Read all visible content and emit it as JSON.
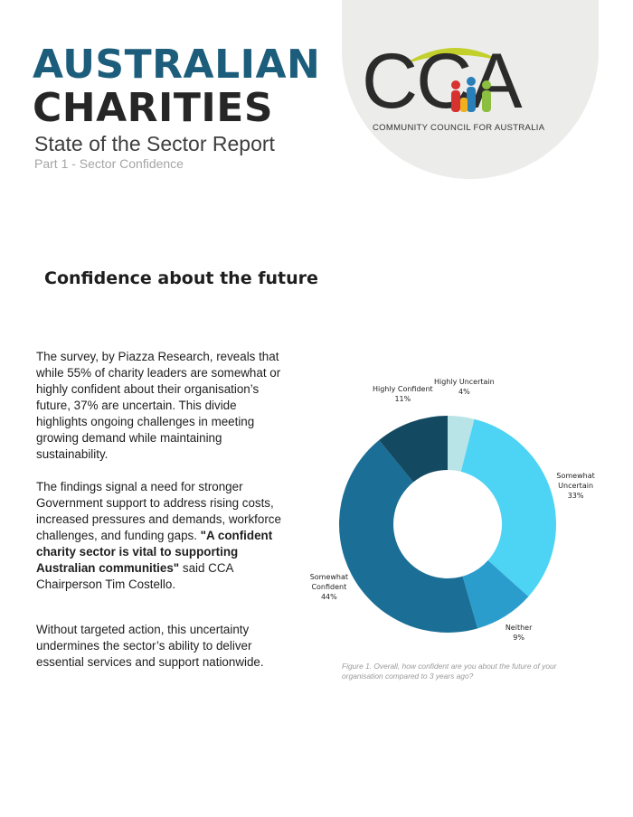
{
  "header": {
    "title_line1": "AUSTRALIAN",
    "title_line2": "CHARITIES",
    "subtitle": "State of the Sector Report",
    "part": "Part 1 - Sector Confidence"
  },
  "logo": {
    "letters": "CCA",
    "tagline": "COMMUNITY COUNCIL FOR AUSTRALIA"
  },
  "section_title": "Confidence about the future",
  "paragraphs": [
    [
      "The survey, by Piazza Research, reveals that while 55% of charity leaders are somewhat or highly confident about their organisation’s future, 37% are uncertain. This divide highlights ongoing challenges in meeting growing demand while maintaining sustainability."
    ],
    [
      "The findings signal a need for stronger Government support to address rising costs, increased pressures and demands, workforce challenges, and funding gaps. ",
      "\"A confident charity sector is vital to supporting Australian communities\"",
      " said CCA Chairperson Tim Costello."
    ],
    [
      "Without targeted action, this uncertainty undermines the sector’s ability to deliver essential services and support nationwide."
    ]
  ],
  "chart_data": {
    "type": "donut",
    "categories": [
      "Highly Uncertain",
      "Somewhat Uncertain",
      "Neither",
      "Somewhat Confident",
      "Highly Confident"
    ],
    "values": [
      4,
      33,
      9,
      44,
      11
    ],
    "value_labels": [
      "4%",
      "33%",
      "9%",
      "44%",
      "11%"
    ],
    "colors": [
      "#b8e3e7",
      "#4dd3f4",
      "#2b9dcd",
      "#1b6e96",
      "#134a62"
    ],
    "caption": "Figure 1. Overall, how confident are you about the future of your organisation compared to 3 years ago?"
  }
}
